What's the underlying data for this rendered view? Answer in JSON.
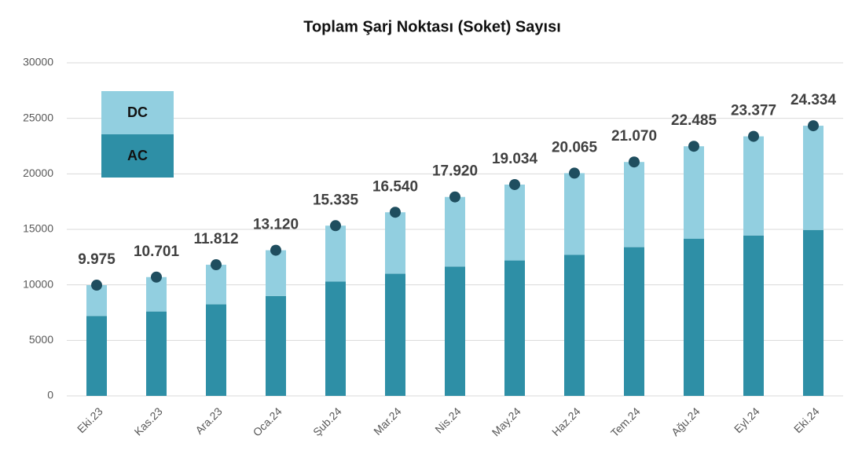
{
  "chart_data": {
    "type": "stacked_bar",
    "title": "Toplam Şarj Noktası (Soket) Sayısı",
    "categories": [
      "Eki.23",
      "Kas.23",
      "Ara.23",
      "Oca.24",
      "Şub.24",
      "Mar.24",
      "Nis.24",
      "May.24",
      "Haz.24",
      "Tem.24",
      "Ağu.24",
      "Eyl.24",
      "Eki.24"
    ],
    "series": [
      {
        "name": "AC",
        "color": "#2e8fa6",
        "values": [
          7200,
          7600,
          8250,
          9000,
          10300,
          11000,
          11650,
          12200,
          12700,
          13400,
          14150,
          14450,
          14950
        ]
      },
      {
        "name": "DC",
        "color": "#92cfe0",
        "values": [
          2775,
          3101,
          3562,
          4120,
          5035,
          5540,
          6270,
          6834,
          7365,
          7670,
          8335,
          8927,
          9384
        ]
      }
    ],
    "totals": {
      "color": "#1f4e5f",
      "values": [
        9975,
        10701,
        11812,
        13120,
        15335,
        16540,
        17920,
        19034,
        20065,
        21070,
        22485,
        23377,
        24334
      ],
      "value_labels": [
        "9.975",
        "10.701",
        "11.812",
        "13.120",
        "15.335",
        "16.540",
        "17.920",
        "19.034",
        "20.065",
        "21.070",
        "22.485",
        "23.377",
        "24.334"
      ]
    },
    "ylim": [
      0,
      30000
    ],
    "yticks": [
      0,
      5000,
      10000,
      15000,
      20000,
      25000,
      30000
    ],
    "grid": true,
    "legend": "upper left"
  }
}
